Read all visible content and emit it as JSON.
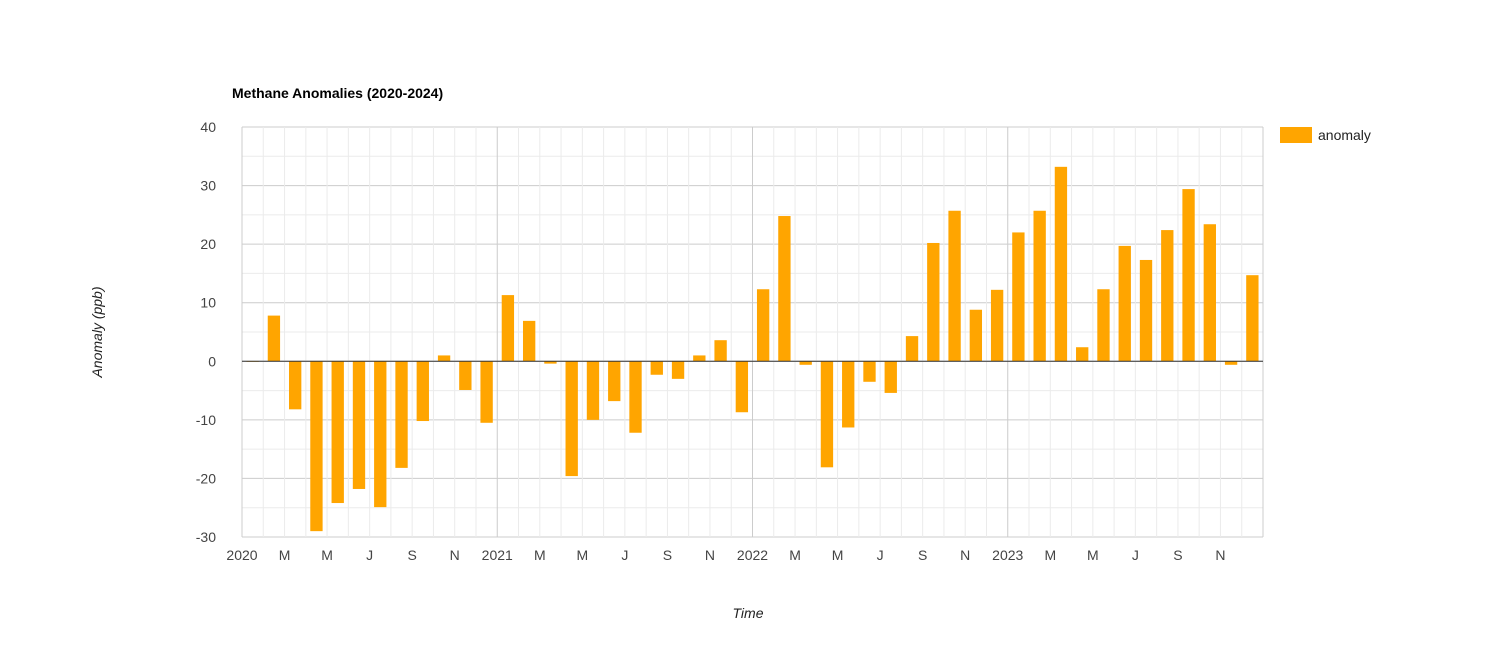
{
  "chart_data": {
    "type": "bar",
    "title": "Methane Anomalies (2020-2024)",
    "xlabel": "Time",
    "ylabel": "Anomaly (ppb)",
    "ylim": [
      -30,
      40
    ],
    "y_ticks": [
      "40",
      "30",
      "20",
      "10",
      "0",
      "-10",
      "-20",
      "-30"
    ],
    "x_ticks": [
      "2020",
      "M",
      "M",
      "J",
      "S",
      "N",
      "2021",
      "M",
      "M",
      "J",
      "S",
      "N",
      "2022",
      "M",
      "M",
      "J",
      "S",
      "N",
      "2023",
      "M",
      "M",
      "J",
      "S",
      "N"
    ],
    "legend": {
      "position": "right",
      "entries": [
        "anomaly"
      ]
    },
    "grid": true,
    "bar_color": "#FFA500",
    "series": [
      {
        "name": "anomaly",
        "values": [
          0,
          7.8,
          -8.2,
          -29,
          -24.2,
          -21.8,
          -24.9,
          -18.2,
          -10.2,
          1,
          -4.9,
          -10.5,
          11.3,
          6.9,
          -0.4,
          -19.6,
          -10,
          -6.8,
          -12.2,
          -2.3,
          -3,
          1,
          3.6,
          -8.7,
          12.3,
          24.8,
          -0.6,
          -18.1,
          -11.3,
          -3.5,
          -5.4,
          4.3,
          20.2,
          25.7,
          8.8,
          12.2,
          22,
          25.7,
          33.2,
          2.4,
          12.3,
          19.7,
          17.3,
          22.4,
          29.4,
          23.4,
          -0.6,
          14.7
        ]
      }
    ]
  }
}
